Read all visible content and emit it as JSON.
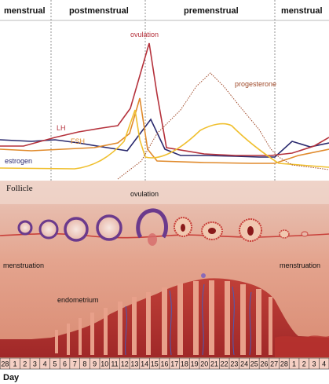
{
  "phases": [
    {
      "label": "menstrual"
    },
    {
      "label": "postmenstrual"
    },
    {
      "label": "premenstrual"
    },
    {
      "label": "menstrual"
    }
  ],
  "hormone_chart": {
    "peak_label": "ovulation",
    "curves": [
      {
        "name": "LH",
        "color": "#b5323c"
      },
      {
        "name": "FSH",
        "color": "#e08a2c"
      },
      {
        "name": "estrogen",
        "color": "#2b2a6e"
      },
      {
        "name": "progesterone",
        "color": "#a04a2a"
      }
    ],
    "estrogen_second_curve_color": "#f0c030"
  },
  "tissue": {
    "follicle_label": "Follicle",
    "ovulation_label": "ovulation",
    "menstruation_left": "menstruation",
    "menstruation_right": "menstruation",
    "endometrium_label": "endometrium"
  },
  "days": {
    "axis_label": "Day",
    "values": [
      "28",
      "1",
      "2",
      "3",
      "4",
      "5",
      "6",
      "7",
      "8",
      "9",
      "10",
      "11",
      "12",
      "13",
      "14",
      "15",
      "16",
      "17",
      "18",
      "19",
      "20",
      "21",
      "22",
      "23",
      "24",
      "25",
      "26",
      "27",
      "28",
      "1",
      "2",
      "3",
      "4"
    ]
  },
  "colors": {
    "tissue_bg": "#e8a08a",
    "tissue_dark": "#b8322e",
    "follicle_purple": "#6b3a8c",
    "vessel_blue": "#4a5ab8"
  }
}
